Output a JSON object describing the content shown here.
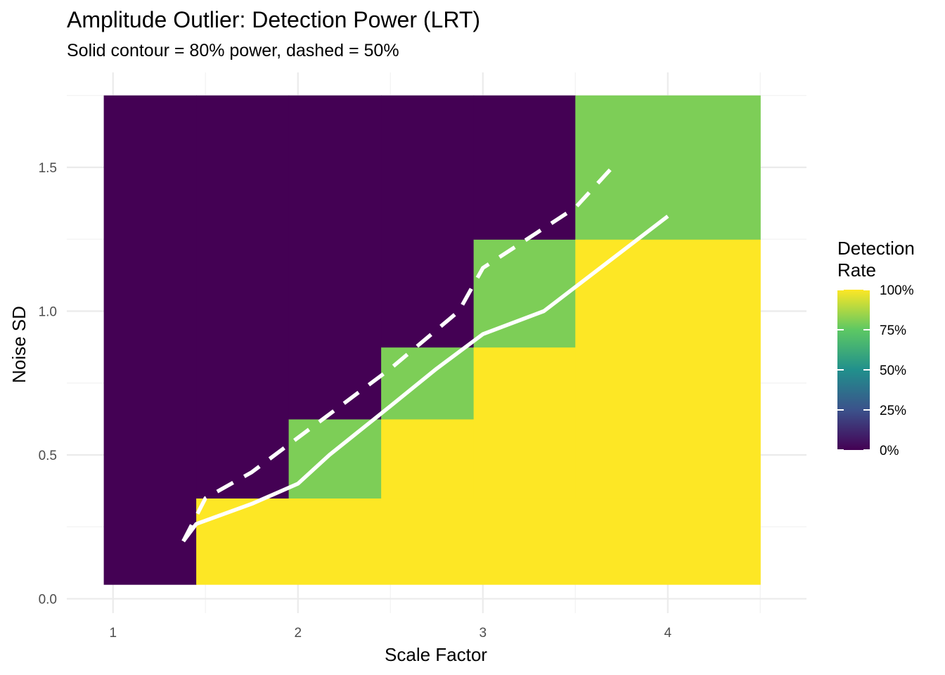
{
  "chart_data": {
    "type": "heatmap",
    "title": "Amplitude Outlier: Detection Power (LRT)",
    "subtitle": "Solid contour = 80% power, dashed = 50%",
    "xlabel": "Scale Factor",
    "ylabel": "Noise SD",
    "xlim": [
      0.75,
      4.75
    ],
    "ylim": [
      -0.05,
      1.83
    ],
    "x_ticks": [
      1,
      2,
      3,
      4
    ],
    "x_tick_labels": [
      "1",
      "2",
      "3",
      "4"
    ],
    "y_ticks": [
      0.0,
      0.5,
      1.0,
      1.5
    ],
    "y_tick_labels": [
      "0.0",
      "0.5",
      "1.0",
      "1.5"
    ],
    "grid": true,
    "legend": {
      "title_lines": [
        "Detection",
        "Rate"
      ],
      "position": "right",
      "breaks": [
        0,
        0.25,
        0.5,
        0.75,
        1.0
      ],
      "labels": [
        "0%",
        "25%",
        "50%",
        "75%",
        "100%"
      ],
      "colors": [
        "#440154",
        "#3B528B",
        "#21908C",
        "#5DC863",
        "#FDE725"
      ]
    },
    "cells": [
      {
        "x0": 0.95,
        "x1": 1.45,
        "y0": 0.05,
        "y1": 1.75,
        "value": 0.0
      },
      {
        "x0": 1.45,
        "x1": 4.5,
        "y0": 0.05,
        "y1": 0.35,
        "value": 1.0
      },
      {
        "x0": 1.45,
        "x1": 1.95,
        "y0": 0.35,
        "y1": 1.75,
        "value": 0.0
      },
      {
        "x0": 1.95,
        "x1": 2.45,
        "y0": 0.35,
        "y1": 0.625,
        "value": 0.8
      },
      {
        "x0": 1.95,
        "x1": 2.45,
        "y0": 0.625,
        "y1": 1.75,
        "value": 0.0
      },
      {
        "x0": 2.45,
        "x1": 2.95,
        "y0": 0.35,
        "y1": 0.625,
        "value": 1.0
      },
      {
        "x0": 2.45,
        "x1": 2.95,
        "y0": 0.625,
        "y1": 0.875,
        "value": 0.8
      },
      {
        "x0": 2.45,
        "x1": 2.95,
        "y0": 0.875,
        "y1": 1.75,
        "value": 0.0
      },
      {
        "x0": 2.95,
        "x1": 3.5,
        "y0": 0.35,
        "y1": 0.875,
        "value": 1.0
      },
      {
        "x0": 2.95,
        "x1": 3.5,
        "y0": 0.875,
        "y1": 1.25,
        "value": 0.8
      },
      {
        "x0": 2.95,
        "x1": 3.5,
        "y0": 1.25,
        "y1": 1.75,
        "value": 0.0
      },
      {
        "x0": 3.5,
        "x1": 4.5,
        "y0": 0.35,
        "y1": 1.25,
        "value": 1.0
      },
      {
        "x0": 3.5,
        "x1": 4.5,
        "y0": 1.25,
        "y1": 1.75,
        "value": 0.8
      }
    ],
    "contours": [
      {
        "level": 0.8,
        "style": "solid",
        "points": [
          [
            1.38,
            0.2
          ],
          [
            1.45,
            0.26
          ],
          [
            1.75,
            0.33
          ],
          [
            2.0,
            0.4
          ],
          [
            2.17,
            0.5
          ],
          [
            2.5,
            0.67
          ],
          [
            2.75,
            0.8
          ],
          [
            3.0,
            0.92
          ],
          [
            3.33,
            1.0
          ],
          [
            4.0,
            1.33
          ]
        ]
      },
      {
        "level": 0.5,
        "style": "dashed",
        "points": [
          [
            1.38,
            0.2
          ],
          [
            1.5,
            0.35
          ],
          [
            1.75,
            0.44
          ],
          [
            2.0,
            0.56
          ],
          [
            2.5,
            0.8
          ],
          [
            2.87,
            1.0
          ],
          [
            3.0,
            1.15
          ],
          [
            3.5,
            1.36
          ],
          [
            3.7,
            1.5
          ]
        ]
      }
    ]
  }
}
